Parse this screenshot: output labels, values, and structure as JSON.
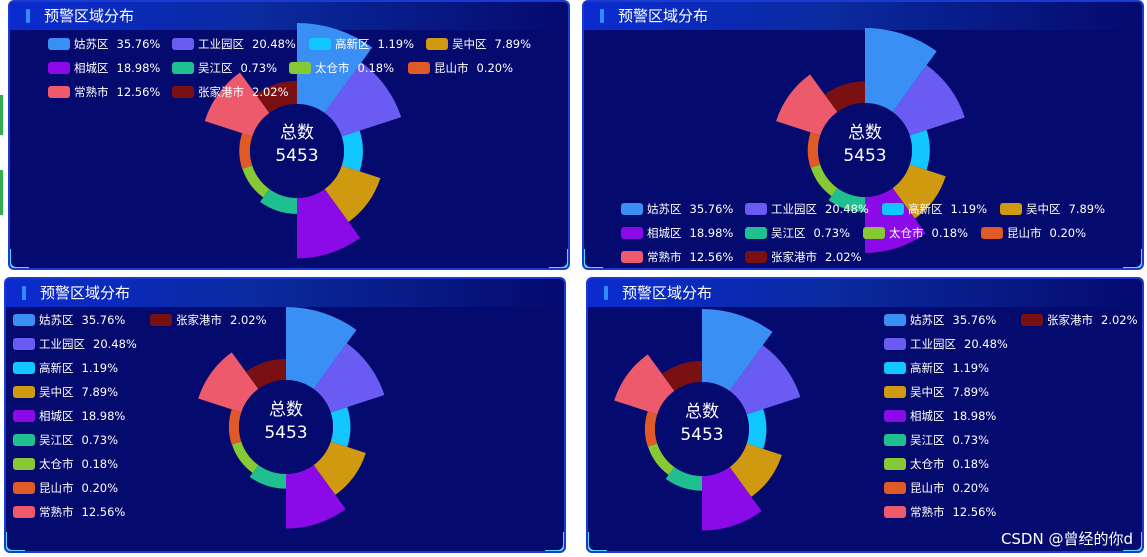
{
  "watermark": "CSDN @曾经的你d",
  "panels": [
    {
      "title": "预警区域分布",
      "center_label": "总数",
      "center_value": "5453"
    },
    {
      "title": "预警区域分布",
      "center_label": "总数",
      "center_value": "5453"
    },
    {
      "title": "预警区域分布",
      "center_label": "总数",
      "center_value": "5453"
    },
    {
      "title": "预警区域分布",
      "center_label": "总数",
      "center_value": "5453"
    }
  ],
  "chart_data": {
    "type": "pie",
    "variant": "nightingale-rose",
    "title": "预警区域分布",
    "total": 5453,
    "categories": [
      "姑苏区",
      "工业园区",
      "高新区",
      "吴中区",
      "相城区",
      "吴江区",
      "太仓市",
      "昆山市",
      "常熟市",
      "张家港市"
    ],
    "values": [
      35.76,
      20.48,
      1.19,
      7.89,
      18.98,
      0.73,
      0.18,
      0.2,
      12.56,
      2.02
    ],
    "labels": [
      "35.76%",
      "20.48%",
      "1.19%",
      "7.89%",
      "18.98%",
      "0.73%",
      "0.18%",
      "0.20%",
      "12.56%",
      "2.02%"
    ],
    "colors": [
      "#3a8ff5",
      "#6a5cf2",
      "#12c6ff",
      "#cf9a0f",
      "#8a0ae8",
      "#1fbf8f",
      "#86c934",
      "#e05a28",
      "#ec5a6c",
      "#7a1012"
    ]
  }
}
